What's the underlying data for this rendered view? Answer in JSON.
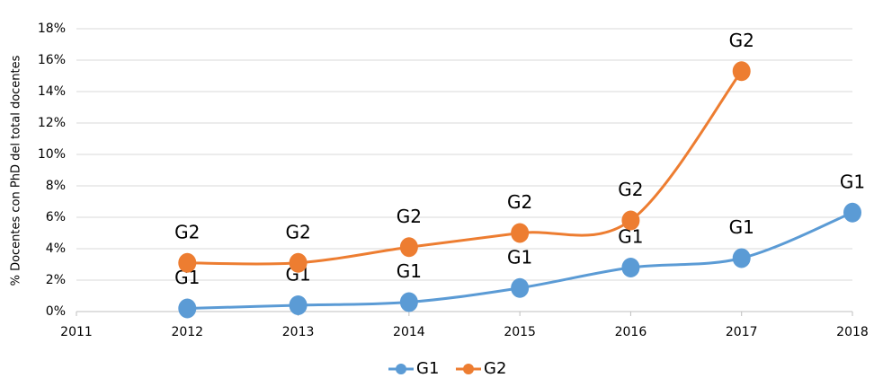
{
  "chart_data": {
    "type": "line",
    "y_label": "% Docentes con PhD del total docentes",
    "x": [
      2012,
      2013,
      2014,
      2015,
      2016,
      2017,
      2018
    ],
    "series": [
      {
        "name": "G1",
        "color": "#5b9bd5",
        "values": [
          0.2,
          0.4,
          0.6,
          1.5,
          2.8,
          3.4,
          6.3
        ],
        "value_labels": [
          "G1",
          "G1",
          "G1",
          "G1",
          "G1",
          "G1",
          "G1"
        ]
      },
      {
        "name": "G2",
        "color": "#ed7d31",
        "values": [
          3.1,
          3.1,
          4.1,
          5.0,
          5.8,
          15.3,
          null
        ],
        "value_labels": [
          "G2",
          "G2",
          "G2",
          "G2",
          "G2",
          "G2",
          null
        ]
      }
    ],
    "xlim": [
      2011,
      2018
    ],
    "xticks": [
      2011,
      2012,
      2013,
      2014,
      2015,
      2016,
      2017,
      2018
    ],
    "ylim": [
      0,
      18
    ],
    "yticks": [
      {
        "value": 0,
        "label": "0%"
      },
      {
        "value": 2,
        "label": "2%"
      },
      {
        "value": 4,
        "label": "4%"
      },
      {
        "value": 6,
        "label": "6%"
      },
      {
        "value": 8,
        "label": "8%"
      },
      {
        "value": 10,
        "label": "10%"
      },
      {
        "value": 12,
        "label": "12%"
      },
      {
        "value": 14,
        "label": "14%"
      },
      {
        "value": 16,
        "label": "16%"
      },
      {
        "value": 18,
        "label": "18%"
      }
    ],
    "grid": true,
    "smooth": true,
    "legend": "bottom"
  }
}
